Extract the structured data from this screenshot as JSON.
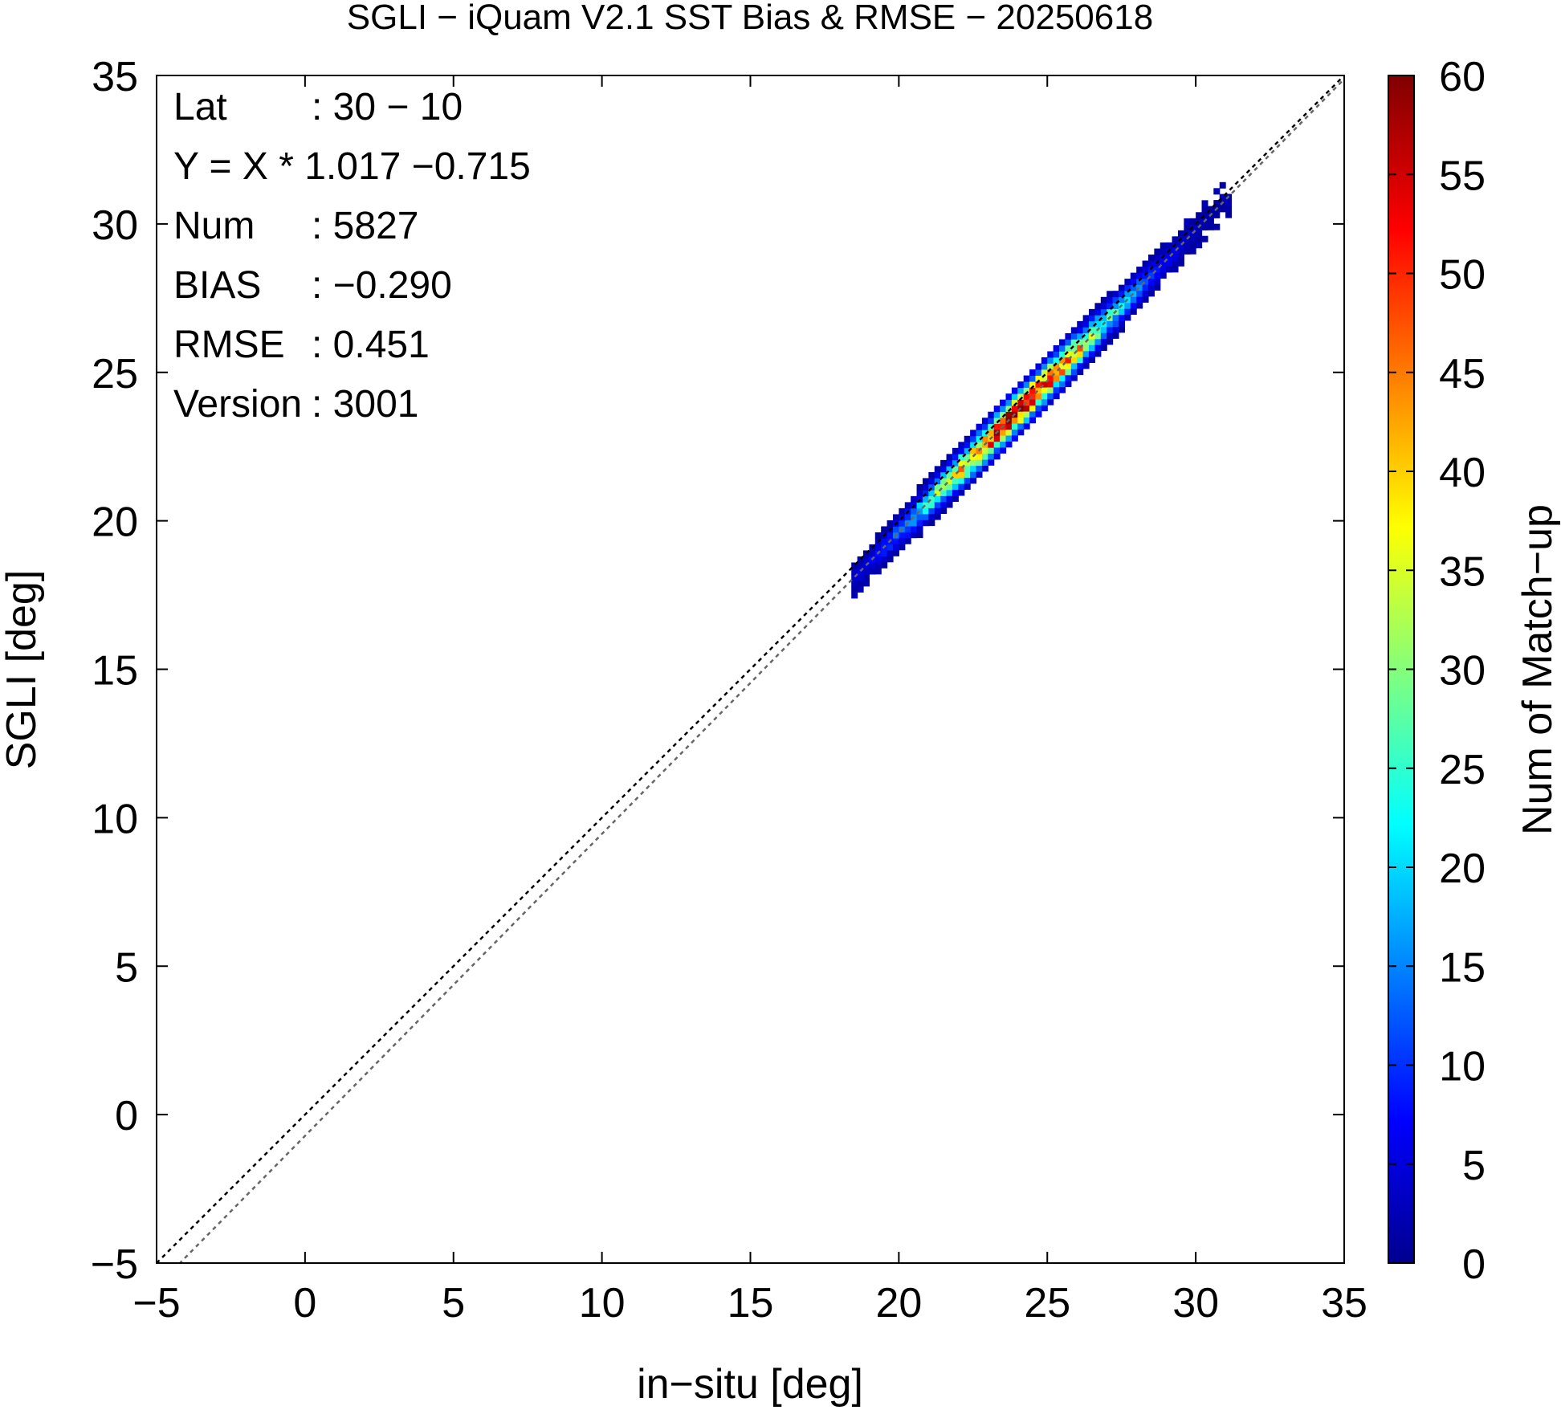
{
  "chart_data": {
    "type": "heatmap",
    "title": "SGLI − iQuam V2.1 SST Bias & RMSE  − 20250618",
    "xlabel": "in−situ [deg]",
    "ylabel": "SGLI [deg]",
    "xlim": [
      -5,
      35
    ],
    "ylim": [
      -5,
      35
    ],
    "x_ticks": [
      "−5",
      "0",
      "5",
      "10",
      "15",
      "20",
      "25",
      "30",
      "35"
    ],
    "y_ticks": [
      "−5",
      "0",
      "5",
      "10",
      "15",
      "20",
      "25",
      "30",
      "35"
    ],
    "x_tick_values": [
      -5,
      0,
      5,
      10,
      15,
      20,
      25,
      30,
      35
    ],
    "y_tick_values": [
      -5,
      0,
      5,
      10,
      15,
      20,
      25,
      30,
      35
    ],
    "colorbar": {
      "label": "Num of Match−up",
      "range": [
        0,
        60
      ],
      "ticks": [
        "0",
        "5",
        "10",
        "15",
        "20",
        "25",
        "30",
        "35",
        "40",
        "45",
        "50",
        "55",
        "60"
      ],
      "tick_values": [
        0,
        5,
        10,
        15,
        20,
        25,
        30,
        35,
        40,
        45,
        50,
        55,
        60
      ],
      "colors": [
        "#00008f",
        "#0000ff",
        "#00ffff",
        "#ffff00",
        "#ff0000",
        "#800000"
      ]
    },
    "reference_lines": [
      {
        "kind": "one_to_one",
        "slope": 1.0,
        "intercept": 0.0,
        "color": "#000000",
        "style": "dotted"
      },
      {
        "kind": "regression",
        "slope": 1.017,
        "intercept": -0.715,
        "color": "#666666",
        "style": "dotted"
      }
    ],
    "density": {
      "x_range": [
        18.4,
        31.0
      ],
      "regression_slope": 1.017,
      "regression_intercept": -0.715,
      "peak_x": 24.0,
      "peak_count": 55,
      "spread": 0.45
    },
    "annotations": [
      {
        "label": "Lat",
        "value": ": 30 − 10"
      },
      {
        "label": "Y = X * 1.017 −0.715",
        "value": ""
      },
      {
        "label": "Num",
        "value": ": 5827"
      },
      {
        "label": "BIAS",
        "value": ": −0.290"
      },
      {
        "label": "RMSE",
        "value": ": 0.451"
      },
      {
        "label": "Version",
        "value": ": 3001"
      }
    ],
    "grid": false
  }
}
